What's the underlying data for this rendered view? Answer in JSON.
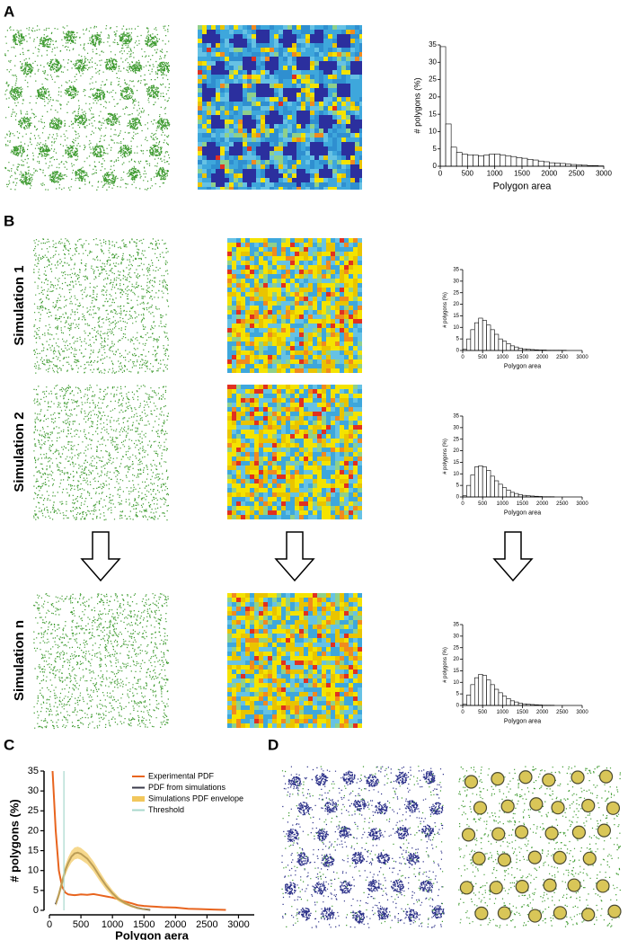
{
  "panel_labels": [
    "A",
    "B",
    "C",
    "D"
  ],
  "row_labels": [
    "Simulation 1",
    "Simulation 2",
    "Simulation n"
  ],
  "chart_data": [
    {
      "type": "histogram",
      "xlabel": "Polygon area",
      "ylabel": "# polygons (%)",
      "bins": [
        0,
        100,
        200,
        300,
        400,
        500,
        600,
        700,
        800,
        900,
        1000,
        1100,
        1200,
        1300,
        1400,
        1500,
        1600,
        1700,
        1800,
        1900,
        2000,
        2100,
        2200,
        2300,
        2400,
        2500,
        2600,
        2700,
        2800,
        2900,
        3000
      ],
      "values": [
        34.5,
        12.2,
        5.5,
        4,
        3.5,
        3.3,
        3.2,
        3,
        3.2,
        3.5,
        3.5,
        3.2,
        3,
        2.8,
        2.5,
        2.3,
        2,
        1.8,
        1.5,
        1.3,
        1,
        0.9,
        0.8,
        0.6,
        0.5,
        0.4,
        0.3,
        0.2,
        0.2,
        0.1
      ],
      "color": "#ffffff",
      "xlim": [
        0,
        3000
      ],
      "ylim": [
        0,
        35
      ],
      "xticks": [
        0,
        500,
        1000,
        1500,
        2000,
        2500,
        3000
      ],
      "yticks": [
        0,
        5,
        10,
        15,
        20,
        25,
        30,
        35
      ]
    },
    {
      "type": "histogram",
      "xlabel": "Polygon area",
      "ylabel": "# polygons (%)",
      "bins": [
        0,
        100,
        200,
        300,
        400,
        500,
        600,
        700,
        800,
        900,
        1000,
        1100,
        1200,
        1300,
        1400,
        1500,
        1600,
        1700,
        1800,
        1900,
        2000,
        2100,
        2200,
        2300,
        2400,
        2500,
        2600,
        2700,
        2800,
        2900,
        3000
      ],
      "values": [
        0.5,
        5,
        9,
        12,
        14,
        13,
        11,
        9,
        7,
        5,
        4,
        3,
        2,
        1.5,
        1,
        0.7,
        0.5,
        0.4,
        0.3,
        0.2,
        0.2,
        0.1,
        0.1,
        0.1,
        0.1,
        0.1,
        0,
        0,
        0,
        0
      ],
      "color": "#ffffff",
      "xlim": [
        0,
        3000
      ],
      "ylim": [
        0,
        35
      ],
      "xticks": [
        0,
        500,
        1000,
        1500,
        2000,
        2500,
        3000
      ],
      "yticks": [
        0,
        5,
        10,
        15,
        20,
        25,
        30,
        35
      ]
    },
    {
      "type": "histogram",
      "xlabel": "Polygon area",
      "ylabel": "# polygons (%)",
      "bins": [
        0,
        100,
        200,
        300,
        400,
        500,
        600,
        700,
        800,
        900,
        1000,
        1100,
        1200,
        1300,
        1400,
        1500,
        1600,
        1700,
        1800,
        1900,
        2000,
        2100,
        2200,
        2300,
        2400,
        2500,
        2600,
        2700,
        2800,
        2900,
        3000
      ],
      "values": [
        0.5,
        5,
        9.5,
        13,
        13.5,
        13,
        11.5,
        9,
        7,
        5.5,
        4,
        3,
        2,
        1.5,
        1,
        0.7,
        0.5,
        0.4,
        0.3,
        0.2,
        0.1,
        0.1,
        0.1,
        0,
        0,
        0,
        0,
        0,
        0,
        0
      ],
      "color": "#ffffff",
      "xlim": [
        0,
        3000
      ],
      "ylim": [
        0,
        35
      ],
      "xticks": [
        0,
        500,
        1000,
        1500,
        2000,
        2500,
        3000
      ],
      "yticks": [
        0,
        5,
        10,
        15,
        20,
        25,
        30,
        35
      ]
    },
    {
      "type": "histogram",
      "xlabel": "Polygon area",
      "ylabel": "# polygons (%)",
      "bins": [
        0,
        100,
        200,
        300,
        400,
        500,
        600,
        700,
        800,
        900,
        1000,
        1100,
        1200,
        1300,
        1400,
        1500,
        1600,
        1700,
        1800,
        1900,
        2000,
        2100,
        2200,
        2300,
        2400,
        2500,
        2600,
        2700,
        2800,
        2900,
        3000
      ],
      "values": [
        0.5,
        4.5,
        9,
        12,
        13.5,
        13,
        11,
        9,
        7,
        5.5,
        4,
        3,
        2,
        1.5,
        1,
        0.7,
        0.5,
        0.4,
        0.3,
        0.2,
        0.1,
        0.1,
        0.1,
        0,
        0,
        0,
        0,
        0,
        0,
        0
      ],
      "color": "#ffffff",
      "xlim": [
        0,
        3000
      ],
      "ylim": [
        0,
        35
      ],
      "xticks": [
        0,
        500,
        1000,
        1500,
        2000,
        2500,
        3000
      ],
      "yticks": [
        0,
        5,
        10,
        15,
        20,
        25,
        30,
        35
      ]
    },
    {
      "type": "line",
      "xlabel": "Polygon aera",
      "ylabel": "# polygons (%)",
      "x": [
        50,
        100,
        150,
        200,
        250,
        300,
        350,
        400,
        450,
        500,
        600,
        700,
        800,
        900,
        1000,
        1100,
        1200,
        1300,
        1400,
        1500,
        1600,
        1700,
        1800,
        2000,
        2200,
        2400,
        2600,
        2800
      ],
      "series": [
        {
          "name": "Experimental PDF",
          "color": "#e8641e",
          "values": [
            35,
            20,
            10,
            6,
            4.5,
            4,
            3.9,
            3.8,
            3.9,
            4,
            3.9,
            4.1,
            3.8,
            3.5,
            3.2,
            2.8,
            2.2,
            1.8,
            1.3,
            1.1,
            1,
            0.9,
            0.8,
            0.7,
            0.4,
            0.3,
            0.2,
            0.1
          ]
        },
        {
          "name": "PDF from simulations",
          "color": "#3a3a4a",
          "values": [
            null,
            1.5,
            4,
            7,
            10,
            12,
            13.5,
            14.3,
            14.5,
            14.2,
            13,
            11,
            8.5,
            6.2,
            4.3,
            2.8,
            1.8,
            1.1,
            0.6,
            0.3,
            0.1,
            null,
            null,
            null,
            null,
            null,
            null,
            null
          ]
        },
        {
          "name": "Simulations PDF envelope",
          "color": "#f2c75c",
          "upper": [
            null,
            2,
            5,
            8.2,
            11.3,
            13.4,
            15,
            15.8,
            16,
            15.7,
            14.4,
            12.3,
            9.7,
            7.2,
            5.1,
            3.4,
            2.2,
            1.4,
            0.8,
            0.5,
            0.2,
            null,
            null,
            null,
            null,
            null,
            null,
            null
          ],
          "lower": [
            null,
            1,
            3,
            5.8,
            8.7,
            10.6,
            12,
            12.8,
            13,
            12.7,
            11.6,
            9.7,
            7.3,
            5.2,
            3.5,
            2.2,
            1.4,
            0.8,
            0.4,
            0.1,
            0,
            null,
            null,
            null,
            null,
            null,
            null,
            null
          ]
        },
        {
          "name": "Threshold",
          "color": "#a8d8cc",
          "x": 230
        }
      ],
      "xlim": [
        0,
        3250
      ],
      "ylim": [
        0,
        35
      ],
      "xticks": [
        0,
        500,
        1000,
        1500,
        2000,
        2500,
        3000
      ],
      "yticks": [
        0,
        5,
        10,
        15,
        20,
        25,
        30,
        35
      ]
    }
  ]
}
